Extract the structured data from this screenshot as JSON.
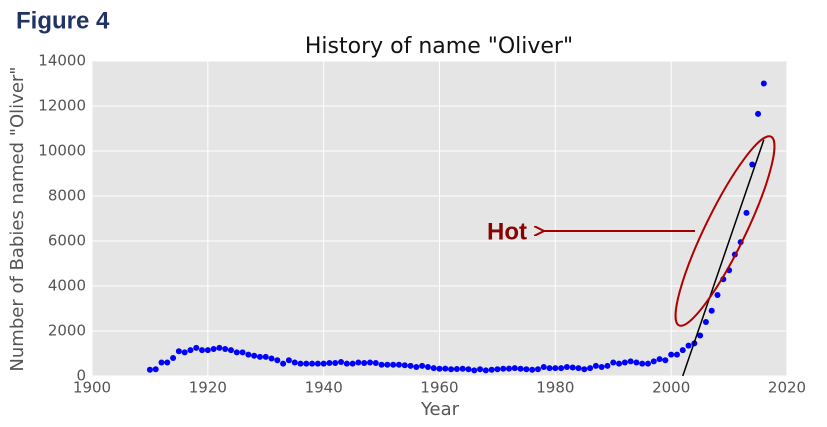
{
  "header": "Figure 4",
  "chart_data": {
    "type": "scatter",
    "title": "History of name \"Oliver\"",
    "xlabel": "Year",
    "ylabel": "Number of Babies named \"Oliver\"",
    "color": "#0000ff",
    "grid": true,
    "x": [
      1910,
      1911,
      1912,
      1913,
      1914,
      1915,
      1916,
      1917,
      1918,
      1919,
      1920,
      1921,
      1922,
      1923,
      1924,
      1925,
      1926,
      1927,
      1928,
      1929,
      1930,
      1931,
      1932,
      1933,
      1934,
      1935,
      1936,
      1937,
      1938,
      1939,
      1940,
      1941,
      1942,
      1943,
      1944,
      1945,
      1946,
      1947,
      1948,
      1949,
      1950,
      1951,
      1952,
      1953,
      1954,
      1955,
      1956,
      1957,
      1958,
      1959,
      1960,
      1961,
      1962,
      1963,
      1964,
      1965,
      1966,
      1967,
      1968,
      1969,
      1970,
      1971,
      1972,
      1973,
      1974,
      1975,
      1976,
      1977,
      1978,
      1979,
      1980,
      1981,
      1982,
      1983,
      1984,
      1985,
      1986,
      1987,
      1988,
      1989,
      1990,
      1991,
      1992,
      1993,
      1994,
      1995,
      1996,
      1997,
      1998,
      1999,
      2000,
      2001,
      2002,
      2003,
      2004,
      2005,
      2006,
      2007,
      2008,
      2009,
      2010,
      2011,
      2012,
      2013,
      2014,
      2015,
      2016
    ],
    "values": [
      280,
      300,
      600,
      600,
      800,
      1100,
      1050,
      1150,
      1250,
      1150,
      1150,
      1200,
      1250,
      1200,
      1150,
      1050,
      1050,
      950,
      900,
      850,
      850,
      780,
      700,
      550,
      700,
      600,
      550,
      550,
      550,
      550,
      550,
      580,
      580,
      620,
      550,
      550,
      600,
      580,
      600,
      580,
      500,
      500,
      500,
      500,
      480,
      450,
      400,
      450,
      400,
      350,
      320,
      330,
      300,
      310,
      320,
      300,
      250,
      300,
      250,
      280,
      300,
      320,
      330,
      350,
      320,
      300,
      280,
      300,
      400,
      350,
      350,
      350,
      400,
      380,
      350,
      300,
      350,
      450,
      400,
      450,
      600,
      550,
      600,
      650,
      600,
      550,
      550,
      650,
      750,
      700,
      950,
      950,
      1150,
      1350,
      1450,
      1800,
      2400,
      2900,
      3600,
      4300,
      4700,
      5400,
      5950,
      7250,
      9400,
      11650,
      13000
    ],
    "trend_line": {
      "x": [
        2002,
        2016
      ],
      "y": [
        0,
        10500
      ]
    },
    "annotation": "Hot",
    "xlim": [
      1900,
      2020
    ],
    "xticks": [
      1900,
      1920,
      1940,
      1960,
      1980,
      2000,
      2020
    ],
    "ylim": [
      0,
      14000
    ],
    "yticks": [
      0,
      2000,
      4000,
      6000,
      8000,
      10000,
      12000,
      14000
    ]
  }
}
